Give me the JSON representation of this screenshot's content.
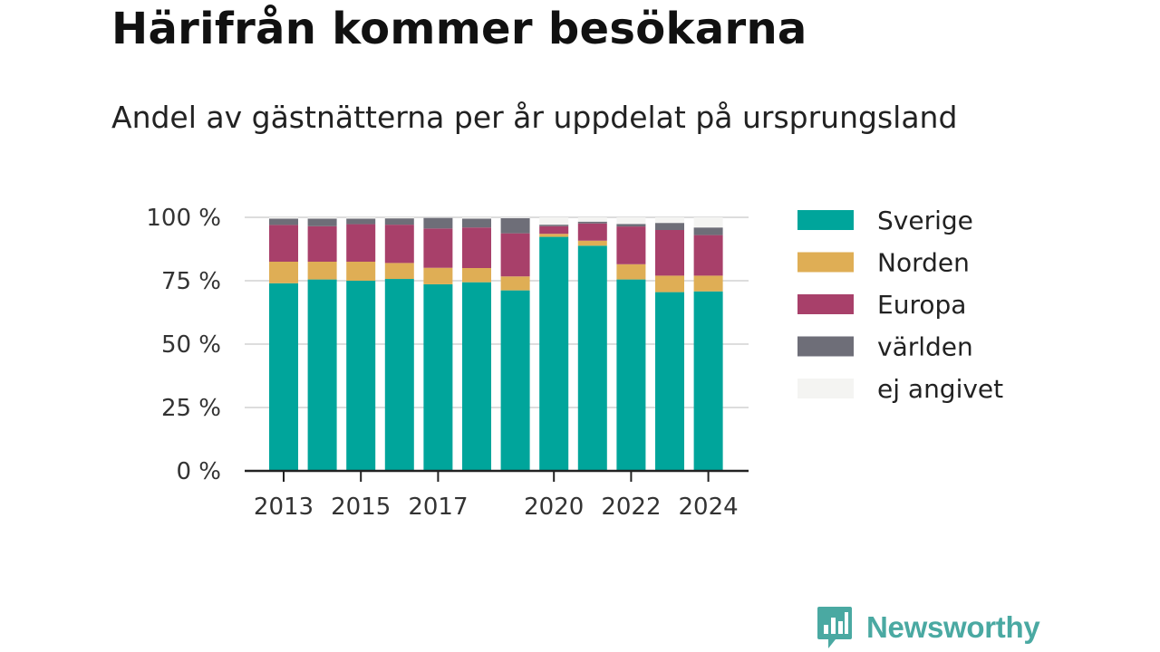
{
  "title": "Härifrån kommer besökarna",
  "subtitle": "Andel av gästnätterna per år uppdelat på ursprungsland",
  "brand": {
    "name": "Newsworthy",
    "icon": "newsworthy-logo-icon",
    "color": "#4aa9a2"
  },
  "chart_data": {
    "type": "bar",
    "stacked": true,
    "years": [
      2013,
      2014,
      2015,
      2016,
      2017,
      2018,
      2019,
      2020,
      2021,
      2022,
      2023,
      2024
    ],
    "x_tick_labels": [
      "2013",
      "2015",
      "2017",
      "2020",
      "2022",
      "2024"
    ],
    "y_tick_labels": [
      "0 %",
      "25 %",
      "50 %",
      "75 %",
      "100 %"
    ],
    "ylim": [
      0,
      100
    ],
    "grid": true,
    "legend_position": "right",
    "series": [
      {
        "name": "Sverige",
        "color": "#00a59b",
        "values": [
          74,
          75.5,
          75,
          75.7,
          73.6,
          74.4,
          71.2,
          92.3,
          88.8,
          75.5,
          70.5,
          70.8
        ]
      },
      {
        "name": "Norden",
        "color": "#dfae55",
        "values": [
          8.5,
          7,
          7.5,
          6.3,
          6.5,
          5.6,
          5.5,
          1.2,
          2,
          6,
          6.5,
          6.2
        ]
      },
      {
        "name": "Europa",
        "color": "#a8406a",
        "values": [
          14.5,
          14,
          14.8,
          15.1,
          15.5,
          16,
          17,
          3,
          6.8,
          14.9,
          18,
          16
        ]
      },
      {
        "name": "världen",
        "color": "#6e6e78",
        "values": [
          2.5,
          3,
          2.2,
          2.5,
          4.2,
          3.5,
          6,
          0.6,
          0.7,
          1,
          2.8,
          3
        ]
      },
      {
        "name": "ej angivet",
        "color": "#f4f4f2",
        "values": [
          0.5,
          0.5,
          0.5,
          0.4,
          0.2,
          0.5,
          0.3,
          2.9,
          1.7,
          2.6,
          2.2,
          4
        ]
      }
    ]
  }
}
